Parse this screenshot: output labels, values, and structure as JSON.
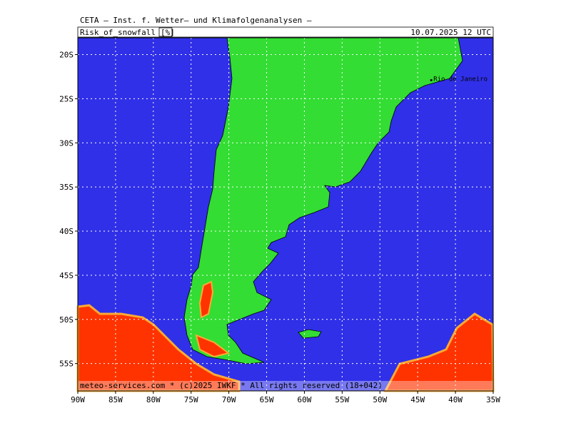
{
  "header": {
    "title": "CETA – Inst. f. Wetter– und Klimafolgenanalysen –",
    "parameter": "Risk_of_snowfall",
    "unit": "[%]",
    "valid_time": "10.07.2025 12 UTC"
  },
  "map": {
    "lon_range": [
      -90,
      -35
    ],
    "lat_range": [
      -18.1,
      -58.1
    ],
    "lat_ticks": [
      {
        "value": -20,
        "label": "20S"
      },
      {
        "value": -25,
        "label": "25S"
      },
      {
        "value": -30,
        "label": "30S"
      },
      {
        "value": -35,
        "label": "35S"
      },
      {
        "value": -40,
        "label": "40S"
      },
      {
        "value": -45,
        "label": "45S"
      },
      {
        "value": -50,
        "label": "50S"
      },
      {
        "value": -55,
        "label": "55S"
      }
    ],
    "lon_ticks": [
      {
        "value": -90,
        "label": "90W"
      },
      {
        "value": -85,
        "label": "85W"
      },
      {
        "value": -80,
        "label": "80W"
      },
      {
        "value": -75,
        "label": "75W"
      },
      {
        "value": -70,
        "label": "70W"
      },
      {
        "value": -65,
        "label": "65W"
      },
      {
        "value": -60,
        "label": "60W"
      },
      {
        "value": -55,
        "label": "55W"
      },
      {
        "value": -50,
        "label": "50W"
      },
      {
        "value": -45,
        "label": "45W"
      },
      {
        "value": -40,
        "label": "40W"
      },
      {
        "value": -35,
        "label": "35W"
      }
    ],
    "cities": [
      {
        "name": "Rio de Janeiro",
        "lon": -43.2,
        "lat": -22.9
      }
    ]
  },
  "footer": "meteo-services.com * (c)2025 IWKF * All rights reserved (18+042)"
}
